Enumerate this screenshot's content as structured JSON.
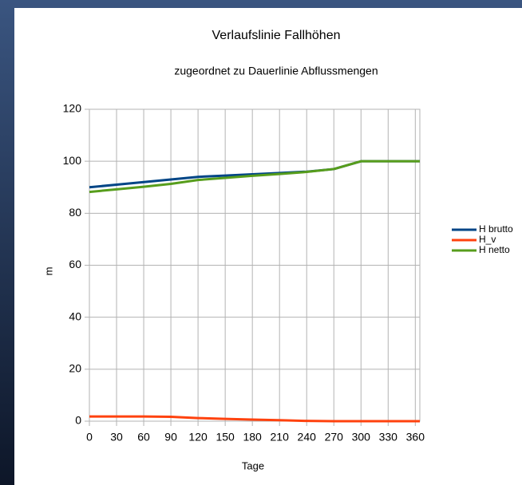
{
  "chart_data": {
    "type": "line",
    "title": "Verlaufslinie Fallhöhen",
    "subtitle": "zugeordnet zu Dauerlinie Abflussmengen",
    "x_label": "Tage",
    "y_label": "m",
    "x": [
      0,
      30,
      60,
      90,
      120,
      150,
      180,
      210,
      240,
      270,
      300,
      330,
      360,
      365
    ],
    "series": [
      {
        "name": "H brutto",
        "color": "#004586",
        "values": [
          90,
          91,
          92,
          93,
          94,
          94.5,
          95,
          95.5,
          96,
          97,
          100,
          100,
          100,
          100
        ]
      },
      {
        "name": "H_v",
        "color": "#ff420e",
        "values": [
          1.8,
          1.8,
          1.8,
          1.7,
          1.2,
          0.9,
          0.6,
          0.4,
          0.1,
          0,
          0,
          0,
          0,
          0
        ]
      },
      {
        "name": "H netto",
        "color": "#579d1c",
        "values": [
          88.2,
          89.2,
          90.2,
          91.3,
          92.8,
          93.6,
          94.4,
          95.1,
          95.9,
          97,
          100,
          100,
          100,
          100
        ]
      }
    ],
    "xlim": [
      0,
      365
    ],
    "xticks": [
      0,
      30,
      60,
      90,
      120,
      150,
      180,
      210,
      240,
      270,
      300,
      330,
      360
    ],
    "ylim": [
      0,
      120
    ],
    "yticks": [
      0,
      20,
      40,
      60,
      80,
      100,
      120
    ],
    "grid": true,
    "legend": "right"
  }
}
